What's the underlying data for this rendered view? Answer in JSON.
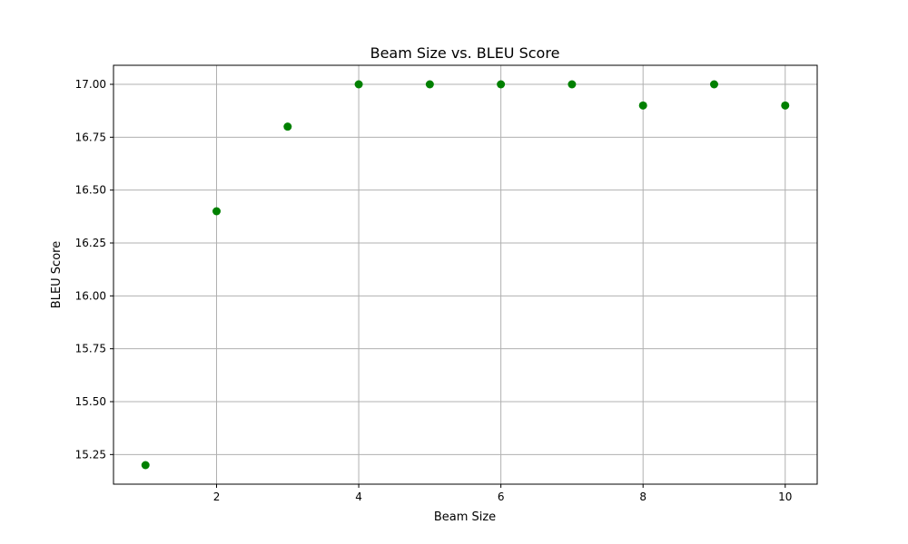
{
  "chart_data": {
    "type": "scatter",
    "title": "Beam Size vs. BLEU Score",
    "xlabel": "Beam Size",
    "ylabel": "BLEU Score",
    "x": [
      1,
      2,
      3,
      4,
      5,
      6,
      7,
      8,
      9,
      10
    ],
    "y": [
      15.2,
      16.4,
      16.8,
      17.0,
      17.0,
      17.0,
      17.0,
      16.9,
      17.0,
      16.9
    ],
    "xlim": [
      0.55,
      10.45
    ],
    "ylim": [
      15.11,
      17.09
    ],
    "xticks": [
      2,
      4,
      6,
      8,
      10
    ],
    "xtick_labels": [
      "2",
      "4",
      "6",
      "8",
      "10"
    ],
    "yticks": [
      15.25,
      15.5,
      15.75,
      16.0,
      16.25,
      16.5,
      16.75,
      17.0
    ],
    "ytick_labels": [
      "15.25",
      "15.50",
      "15.75",
      "16.00",
      "16.25",
      "16.50",
      "16.75",
      "17.00"
    ],
    "grid": true,
    "marker_color": "#008000",
    "grid_color": "#b0b0b0"
  }
}
